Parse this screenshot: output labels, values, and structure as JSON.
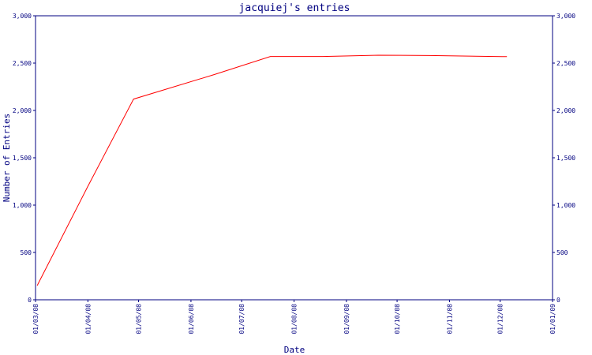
{
  "chart_data": {
    "type": "line",
    "title": "jacquiej's entries",
    "xlabel": "Date",
    "ylabel": "Number of Entries",
    "x_tick_labels": [
      "01/03/08",
      "01/04/08",
      "01/05/08",
      "01/06/08",
      "01/07/08",
      "01/08/08",
      "01/09/08",
      "01/10/08",
      "01/11/08",
      "01/12/08",
      "01/01/09"
    ],
    "y_tick_labels": [
      "0",
      "500",
      "1,000",
      "1,500",
      "2,000",
      "2,500",
      "3,000"
    ],
    "y_ticks": [
      0,
      500,
      1000,
      1500,
      2000,
      2500,
      3000
    ],
    "ylim": [
      0,
      3000
    ],
    "xlim": [
      "2008-03-01",
      "2009-01-01"
    ],
    "series": [
      {
        "color": "#ff0000",
        "points": [
          {
            "x": "2008-03-02",
            "y": 150
          },
          {
            "x": "2008-04-01",
            "y": 1200
          },
          {
            "x": "2008-04-28",
            "y": 2120
          },
          {
            "x": "2008-06-15",
            "y": 2380
          },
          {
            "x": "2008-07-18",
            "y": 2570
          },
          {
            "x": "2008-08-18",
            "y": 2570
          },
          {
            "x": "2008-09-20",
            "y": 2583
          },
          {
            "x": "2008-10-20",
            "y": 2580
          },
          {
            "x": "2008-11-20",
            "y": 2572
          },
          {
            "x": "2008-12-05",
            "y": 2568
          }
        ]
      }
    ],
    "grid": false,
    "right_axis_mirror": true,
    "colors": {
      "axis": "#000080",
      "text": "#000080",
      "line": "#ff0000"
    }
  }
}
